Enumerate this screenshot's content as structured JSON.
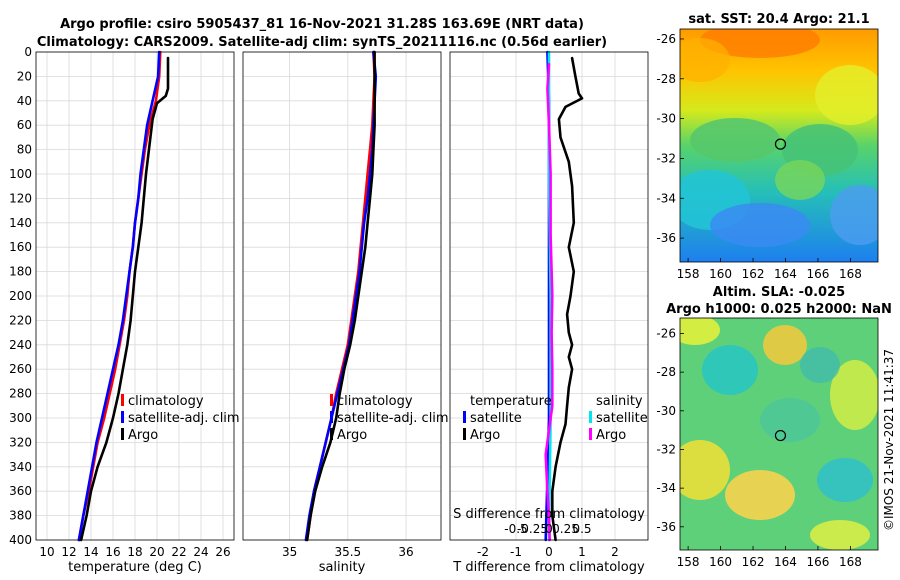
{
  "figure": {
    "title_line1": "Argo profile: csiro 5905437_81 16-Nov-2021 31.28S 163.69E (NRT data)",
    "title_line2": "Climatology: CARS2009. Satellite-adj clim: synTS_20211116.nc (0.56d earlier)",
    "timestamp": "©IMOS 21-Nov-2021 11:41:37"
  },
  "colors": {
    "climatology": "#ff0000",
    "satellite": "#0000ff",
    "argo": "#000000",
    "sat_salinity": "#00e5ee",
    "argo_salinity": "#ff00ff",
    "grid": "#d9d9d9"
  },
  "chart_data": [
    {
      "id": "temperature",
      "type": "line",
      "xlabel": "temperature (deg C)",
      "xlim": [
        9,
        27
      ],
      "ylim": [
        0,
        400
      ],
      "xticks": [
        10,
        12,
        14,
        16,
        18,
        20,
        22,
        24,
        26
      ],
      "yticks": [
        0,
        20,
        40,
        60,
        80,
        100,
        120,
        140,
        160,
        180,
        200,
        220,
        240,
        260,
        280,
        300,
        320,
        340,
        360,
        380,
        400
      ],
      "y_reversed": true,
      "legend": [
        "climatology",
        "satellite-adj. clim",
        "Argo"
      ],
      "series": [
        {
          "name": "climatology",
          "color": "#ff0000",
          "points": [
            [
              20.3,
              0
            ],
            [
              20.2,
              20
            ],
            [
              19.9,
              40
            ],
            [
              19.3,
              60
            ],
            [
              18.9,
              80
            ],
            [
              18.6,
              100
            ],
            [
              18.3,
              120
            ],
            [
              18.0,
              140
            ],
            [
              17.8,
              160
            ],
            [
              17.5,
              180
            ],
            [
              17.3,
              200
            ],
            [
              17.0,
              220
            ],
            [
              16.6,
              240
            ],
            [
              16.2,
              260
            ],
            [
              15.7,
              280
            ],
            [
              15.2,
              300
            ],
            [
              14.6,
              320
            ],
            [
              14.2,
              340
            ],
            [
              13.8,
              360
            ],
            [
              13.3,
              380
            ],
            [
              12.9,
              400
            ]
          ]
        },
        {
          "name": "satellite-adj. clim",
          "color": "#0000ff",
          "points": [
            [
              20.2,
              0
            ],
            [
              20.1,
              20
            ],
            [
              19.6,
              40
            ],
            [
              19.1,
              60
            ],
            [
              18.8,
              80
            ],
            [
              18.5,
              100
            ],
            [
              18.3,
              120
            ],
            [
              18.0,
              140
            ],
            [
              17.8,
              160
            ],
            [
              17.5,
              180
            ],
            [
              17.2,
              200
            ],
            [
              16.9,
              220
            ],
            [
              16.5,
              240
            ],
            [
              16.0,
              260
            ],
            [
              15.5,
              280
            ],
            [
              15.0,
              300
            ],
            [
              14.5,
              320
            ],
            [
              14.1,
              340
            ],
            [
              13.7,
              360
            ],
            [
              13.3,
              380
            ],
            [
              12.9,
              400
            ]
          ]
        },
        {
          "name": "Argo",
          "color": "#000000",
          "points": [
            [
              21.0,
              5
            ],
            [
              21.0,
              30
            ],
            [
              20.8,
              36
            ],
            [
              20.0,
              42
            ],
            [
              19.6,
              55
            ],
            [
              19.4,
              70
            ],
            [
              19.2,
              85
            ],
            [
              19.0,
              100
            ],
            [
              18.8,
              120
            ],
            [
              18.6,
              140
            ],
            [
              18.3,
              160
            ],
            [
              18.0,
              180
            ],
            [
              17.8,
              200
            ],
            [
              17.6,
              220
            ],
            [
              17.3,
              240
            ],
            [
              16.9,
              260
            ],
            [
              16.5,
              280
            ],
            [
              16.0,
              300
            ],
            [
              15.4,
              320
            ],
            [
              14.6,
              340
            ],
            [
              14.0,
              360
            ],
            [
              13.6,
              380
            ],
            [
              13.1,
              400
            ]
          ]
        }
      ]
    },
    {
      "id": "salinity",
      "type": "line",
      "xlabel": "salinity",
      "xlim": [
        34.6,
        36.3
      ],
      "ylim": [
        0,
        400
      ],
      "xticks": [
        35,
        35.5,
        36
      ],
      "xtick_labels": [
        "35",
        "35.5",
        "36"
      ],
      "y_reversed": true,
      "legend": [
        "climatology",
        "satellite-adj. clim",
        "Argo"
      ],
      "series": [
        {
          "name": "climatology",
          "color": "#ff0000",
          "points": [
            [
              35.72,
              0
            ],
            [
              35.73,
              20
            ],
            [
              35.72,
              40
            ],
            [
              35.71,
              60
            ],
            [
              35.69,
              80
            ],
            [
              35.67,
              100
            ],
            [
              35.65,
              120
            ],
            [
              35.63,
              140
            ],
            [
              35.61,
              160
            ],
            [
              35.59,
              180
            ],
            [
              35.56,
              200
            ],
            [
              35.53,
              220
            ],
            [
              35.5,
              240
            ],
            [
              35.45,
              260
            ],
            [
              35.4,
              280
            ],
            [
              35.36,
              300
            ],
            [
              35.31,
              320
            ],
            [
              35.26,
              340
            ],
            [
              35.21,
              360
            ],
            [
              35.18,
              380
            ],
            [
              35.15,
              400
            ]
          ]
        },
        {
          "name": "satellite-adj. clim",
          "color": "#0000ff",
          "points": [
            [
              35.72,
              0
            ],
            [
              35.74,
              20
            ],
            [
              35.73,
              40
            ],
            [
              35.72,
              60
            ],
            [
              35.71,
              80
            ],
            [
              35.69,
              100
            ],
            [
              35.67,
              120
            ],
            [
              35.64,
              140
            ],
            [
              35.62,
              160
            ],
            [
              35.6,
              180
            ],
            [
              35.57,
              200
            ],
            [
              35.54,
              220
            ],
            [
              35.51,
              240
            ],
            [
              35.46,
              260
            ],
            [
              35.41,
              280
            ],
            [
              35.36,
              300
            ],
            [
              35.31,
              320
            ],
            [
              35.26,
              340
            ],
            [
              35.21,
              360
            ],
            [
              35.17,
              380
            ],
            [
              35.14,
              400
            ]
          ]
        },
        {
          "name": "Argo",
          "color": "#000000",
          "points": [
            [
              35.73,
              0
            ],
            [
              35.73,
              20
            ],
            [
              35.73,
              40
            ],
            [
              35.73,
              60
            ],
            [
              35.72,
              80
            ],
            [
              35.71,
              100
            ],
            [
              35.69,
              120
            ],
            [
              35.67,
              140
            ],
            [
              35.65,
              160
            ],
            [
              35.62,
              180
            ],
            [
              35.59,
              200
            ],
            [
              35.56,
              220
            ],
            [
              35.52,
              240
            ],
            [
              35.47,
              260
            ],
            [
              35.43,
              280
            ],
            [
              35.4,
              300
            ],
            [
              35.35,
              320
            ],
            [
              35.28,
              340
            ],
            [
              35.22,
              360
            ],
            [
              35.18,
              380
            ],
            [
              35.15,
              400
            ]
          ]
        }
      ]
    },
    {
      "id": "difference",
      "type": "line",
      "xlabel": "T difference from climatology",
      "xlim": [
        -3,
        3
      ],
      "ylim": [
        0,
        400
      ],
      "xticks": [
        -2,
        -1,
        0,
        1,
        2
      ],
      "xtick_labels": [
        "-2",
        "-1",
        "0",
        "1",
        "2"
      ],
      "s_axis_title": "S difference from climatology",
      "s_ticks": [
        -0.5,
        -0.25,
        0,
        0.25,
        0.5
      ],
      "s_tick_labels": [
        "-0.5",
        "-0.25",
        "0",
        "0.25",
        "0.5"
      ],
      "s_scale_factor": 2,
      "y_reversed": true,
      "legend_temperature_title": "temperature",
      "legend_salinity_title": "salinity",
      "legend_temperature": [
        "satellite",
        "Argo"
      ],
      "legend_salinity": [
        "satellite",
        "Argo"
      ],
      "series": [
        {
          "name": "T satellite",
          "color": "#0000ff",
          "points": [
            [
              -0.05,
              0
            ],
            [
              0.0,
              40
            ],
            [
              0.0,
              100
            ],
            [
              0.0,
              200
            ],
            [
              0.0,
              300
            ],
            [
              -0.05,
              350
            ],
            [
              -0.1,
              400
            ]
          ]
        },
        {
          "name": "S satellite",
          "color": "#00e5ee",
          "points": [
            [
              0.0,
              0
            ],
            [
              0.0,
              100
            ],
            [
              0.05,
              200
            ],
            [
              0.05,
              300
            ],
            [
              0.0,
              400
            ]
          ]
        },
        {
          "name": "S Argo",
          "color": "#ff00ff",
          "points": [
            [
              0.0,
              10
            ],
            [
              -0.05,
              30
            ],
            [
              0.0,
              60
            ],
            [
              0.05,
              100
            ],
            [
              0.05,
              150
            ],
            [
              0.1,
              200
            ],
            [
              0.08,
              230
            ],
            [
              0.1,
              260
            ],
            [
              0.1,
              290
            ],
            [
              0.0,
              310
            ],
            [
              -0.1,
              330
            ],
            [
              -0.05,
              360
            ],
            [
              0.0,
              380
            ],
            [
              0.02,
              400
            ]
          ]
        },
        {
          "name": "T Argo",
          "color": "#000000",
          "points": [
            [
              0.7,
              5
            ],
            [
              0.8,
              20
            ],
            [
              0.9,
              34
            ],
            [
              1.0,
              38
            ],
            [
              0.5,
              45
            ],
            [
              0.3,
              55
            ],
            [
              0.35,
              70
            ],
            [
              0.6,
              90
            ],
            [
              0.7,
              110
            ],
            [
              0.75,
              140
            ],
            [
              0.6,
              160
            ],
            [
              0.75,
              180
            ],
            [
              0.65,
              200
            ],
            [
              0.55,
              215
            ],
            [
              0.6,
              230
            ],
            [
              0.7,
              240
            ],
            [
              0.6,
              250
            ],
            [
              0.7,
              260
            ],
            [
              0.6,
              275
            ],
            [
              0.55,
              290
            ],
            [
              0.5,
              305
            ],
            [
              0.35,
              320
            ],
            [
              0.2,
              340
            ],
            [
              0.1,
              360
            ],
            [
              0.1,
              380
            ],
            [
              0.2,
              400
            ]
          ]
        }
      ]
    },
    {
      "id": "sst_map",
      "type": "heatmap",
      "title": "sat. SST: 20.4 Argo: 21.1",
      "xlim": [
        157.5,
        169.7
      ],
      "ylim": [
        -37.2,
        -25.5
      ],
      "xticks": [
        158,
        160,
        162,
        164,
        166,
        168
      ],
      "yticks": [
        -26,
        -28,
        -30,
        -32,
        -34,
        -36
      ],
      "marker": {
        "lon": 163.69,
        "lat": -31.28
      }
    },
    {
      "id": "sla_map",
      "type": "heatmap",
      "title_line1": "Altim. SLA: -0.025",
      "title_line2": "Argo h1000: 0.025 h2000: NaN",
      "xlim": [
        157.5,
        169.7
      ],
      "ylim": [
        -37.2,
        -25.2
      ],
      "xticks": [
        158,
        160,
        162,
        164,
        166,
        168
      ],
      "yticks": [
        -26,
        -28,
        -30,
        -32,
        -34,
        -36
      ],
      "marker": {
        "lon": 163.69,
        "lat": -31.28
      }
    }
  ]
}
